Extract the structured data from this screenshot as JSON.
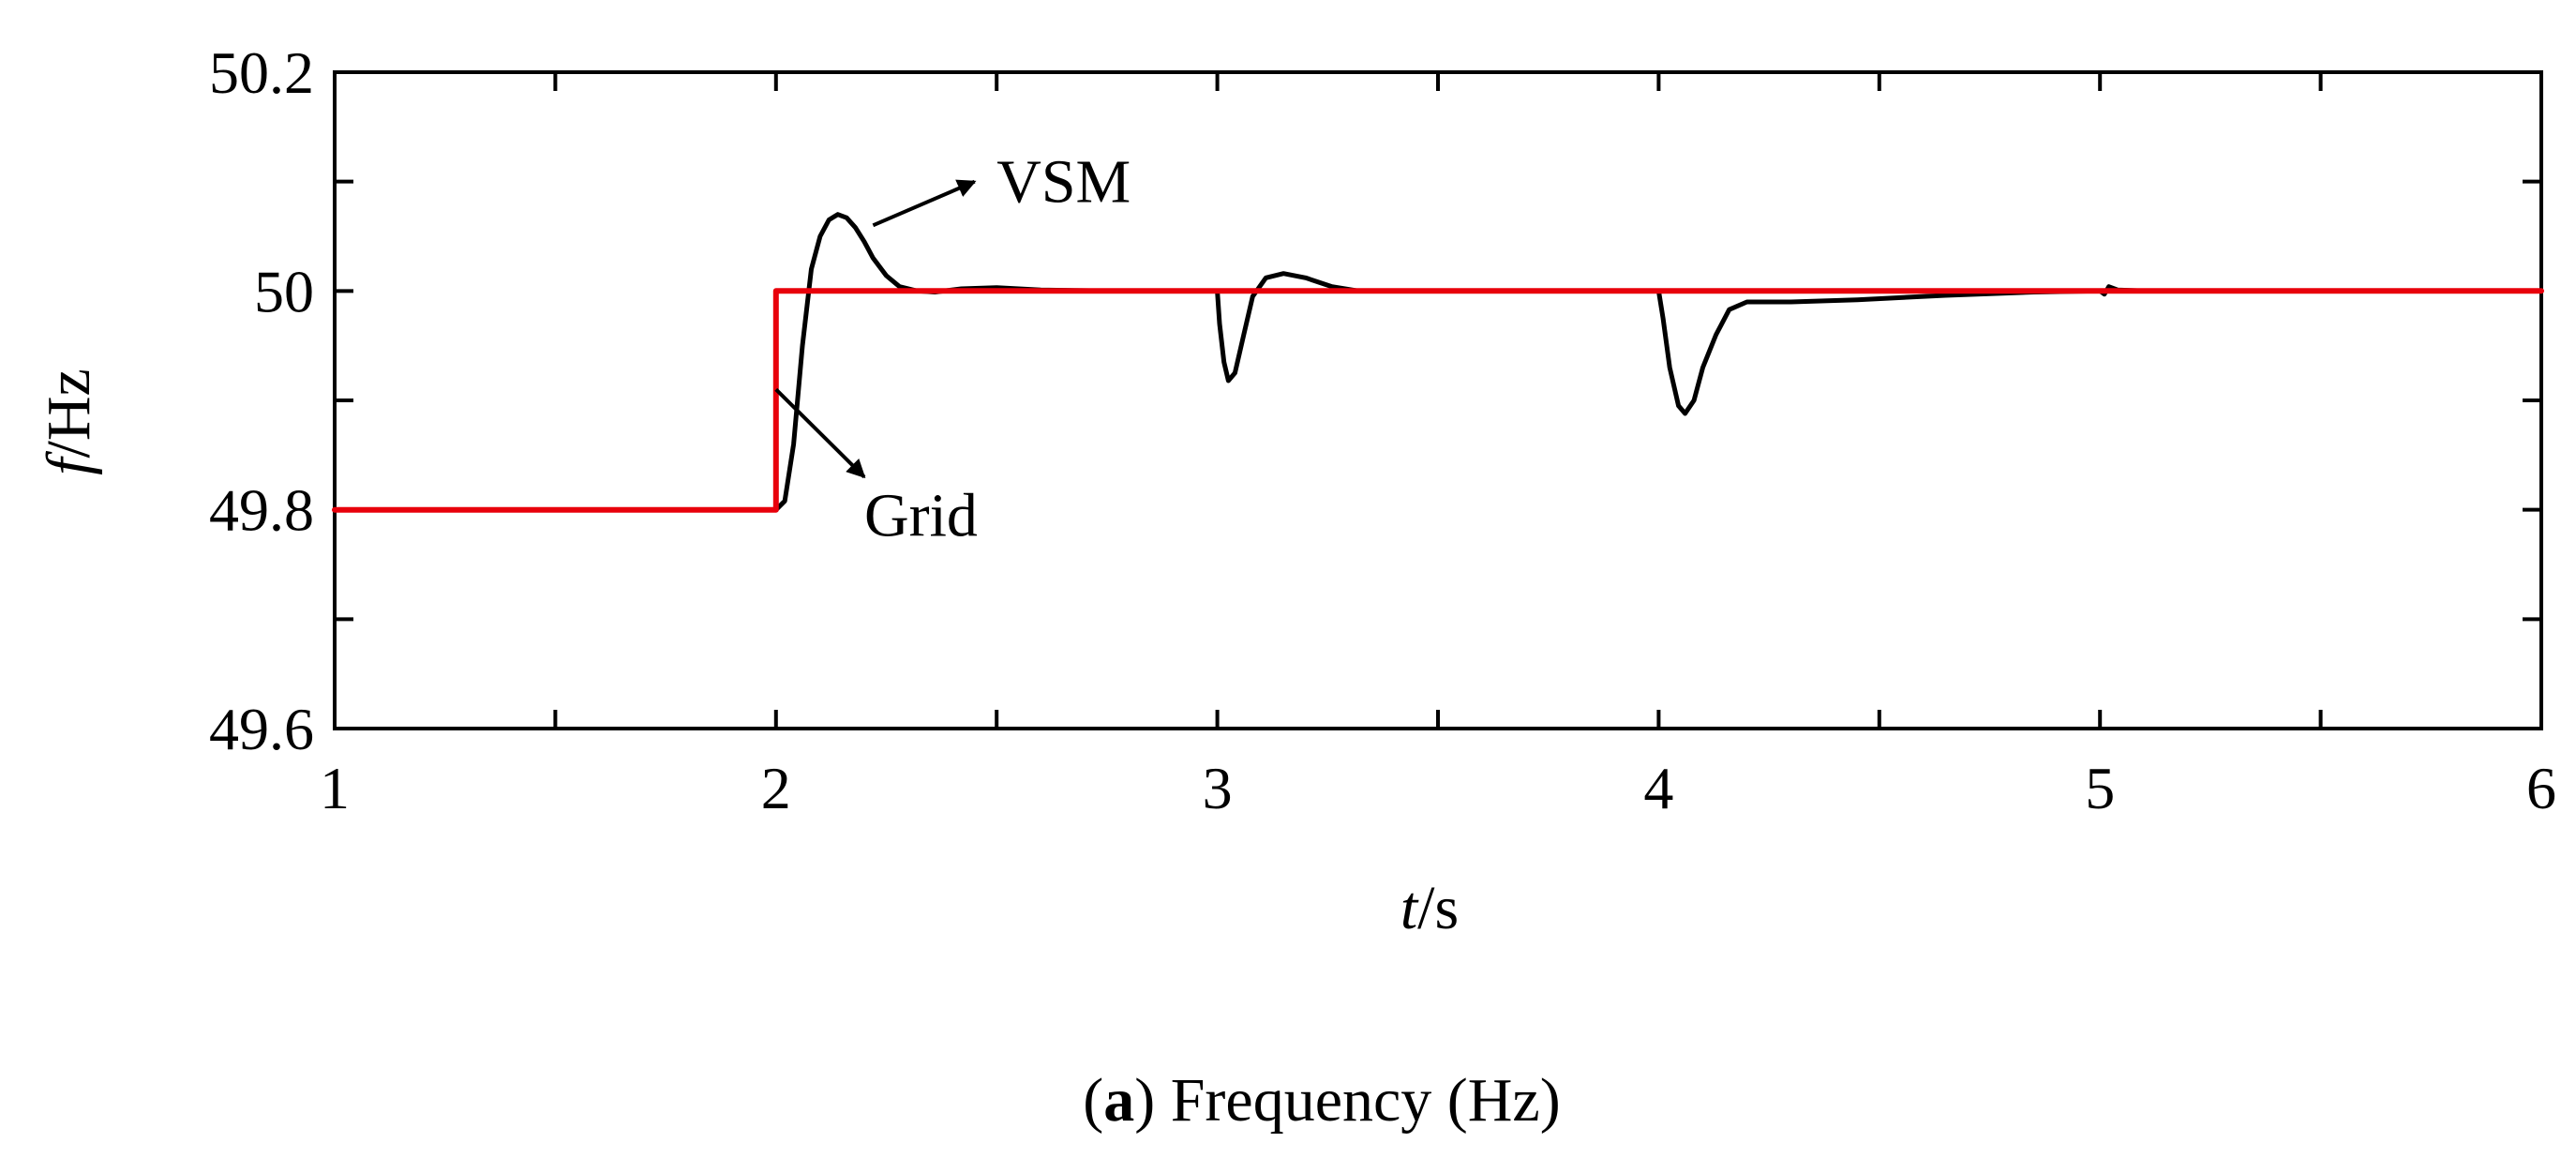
{
  "chart_data": {
    "type": "line",
    "xlim": [
      1,
      6
    ],
    "ylim": [
      49.6,
      50.2
    ],
    "x_ticks": [
      1,
      2,
      3,
      4,
      5,
      6
    ],
    "x_tick_labels": [
      "1",
      "2",
      "3",
      "4",
      "5",
      "6"
    ],
    "x_minor_ticks": [
      1.5,
      2.5,
      3.5,
      4.5,
      5.5
    ],
    "y_ticks": [
      49.6,
      49.8,
      50,
      50.2
    ],
    "y_tick_labels": [
      "49.6",
      "49.8",
      "50",
      "50.2"
    ],
    "y_minor_ticks": [
      49.7,
      49.9,
      50.1
    ],
    "xlabel": {
      "italic": "t",
      "rest": "/s"
    },
    "ylabel": {
      "italic": "f",
      "rest": "/Hz"
    },
    "caption": {
      "prefix": "(",
      "bold": "a",
      "rest": ") Frequency (Hz)"
    },
    "series": [
      {
        "name": "Grid",
        "color": "#e8000b",
        "points": [
          [
            1,
            49.8
          ],
          [
            2,
            49.8
          ],
          [
            2,
            50
          ],
          [
            6,
            50
          ]
        ]
      },
      {
        "name": "VSM",
        "color": "#000000",
        "points": [
          [
            1,
            49.8
          ],
          [
            2.0,
            49.8
          ],
          [
            2.02,
            49.808
          ],
          [
            2.04,
            49.86
          ],
          [
            2.06,
            49.95
          ],
          [
            2.08,
            50.02
          ],
          [
            2.1,
            50.05
          ],
          [
            2.12,
            50.065
          ],
          [
            2.14,
            50.07
          ],
          [
            2.16,
            50.067
          ],
          [
            2.18,
            50.058
          ],
          [
            2.2,
            50.045
          ],
          [
            2.22,
            50.03
          ],
          [
            2.25,
            50.014
          ],
          [
            2.28,
            50.004
          ],
          [
            2.32,
            50.0
          ],
          [
            2.36,
            49.999
          ],
          [
            2.42,
            50.002
          ],
          [
            2.5,
            50.003
          ],
          [
            2.6,
            50.001
          ],
          [
            2.75,
            50.0
          ],
          [
            3.0,
            50.0
          ],
          [
            3.005,
            49.97
          ],
          [
            3.015,
            49.935
          ],
          [
            3.025,
            49.918
          ],
          [
            3.04,
            49.925
          ],
          [
            3.06,
            49.96
          ],
          [
            3.08,
            49.995
          ],
          [
            3.11,
            50.012
          ],
          [
            3.15,
            50.016
          ],
          [
            3.2,
            50.012
          ],
          [
            3.26,
            50.004
          ],
          [
            3.32,
            50.0
          ],
          [
            3.5,
            50.0
          ],
          [
            4.0,
            50.0
          ],
          [
            4.01,
            49.975
          ],
          [
            4.025,
            49.93
          ],
          [
            4.045,
            49.895
          ],
          [
            4.06,
            49.888
          ],
          [
            4.08,
            49.9
          ],
          [
            4.1,
            49.93
          ],
          [
            4.13,
            49.96
          ],
          [
            4.16,
            49.983
          ],
          [
            4.2,
            49.99
          ],
          [
            4.3,
            49.99
          ],
          [
            4.45,
            49.992
          ],
          [
            4.65,
            49.996
          ],
          [
            4.85,
            49.999
          ],
          [
            5.0,
            50.0
          ],
          [
            5.01,
            49.997
          ],
          [
            5.02,
            50.004
          ],
          [
            5.04,
            50.001
          ],
          [
            5.1,
            50.0
          ],
          [
            6.0,
            50.0
          ]
        ]
      }
    ],
    "annotations": [
      {
        "text": "VSM",
        "arrow_from": [
          2.22,
          50.06
        ],
        "arrow_to": [
          2.45,
          50.1
        ],
        "text_at": [
          2.5,
          50.1
        ]
      },
      {
        "text": "Grid",
        "arrow_from": [
          2.0,
          49.91
        ],
        "arrow_to": [
          2.2,
          49.83
        ],
        "text_at": [
          2.2,
          49.795
        ]
      }
    ]
  }
}
